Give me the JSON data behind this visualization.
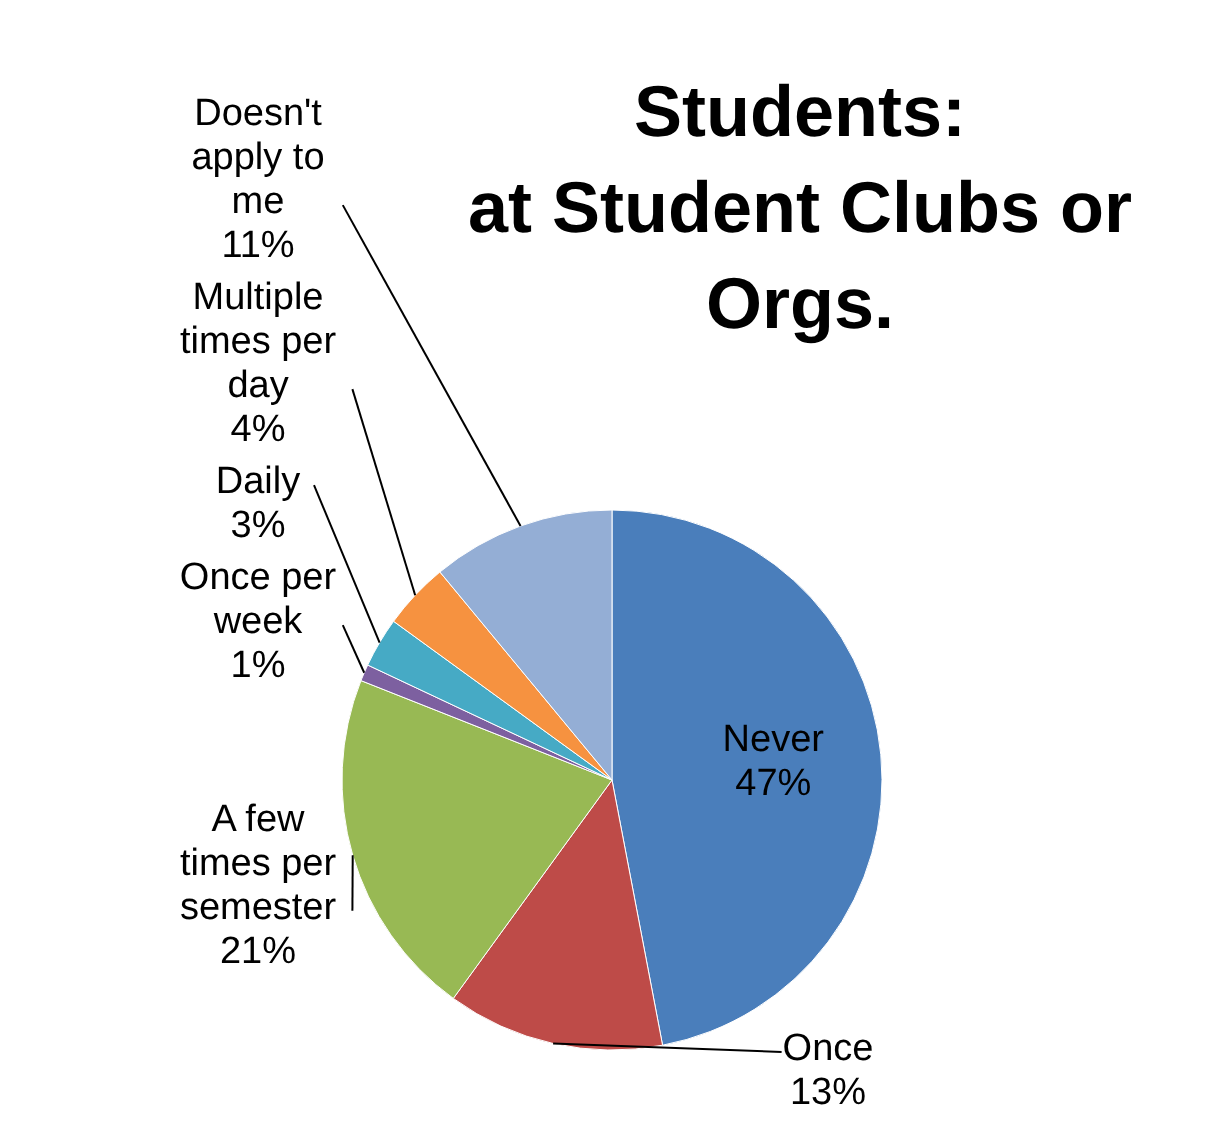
{
  "chart_data": {
    "type": "pie",
    "title": "Students:\nat Student Clubs or Orgs.",
    "categories": [
      "Never",
      "Once",
      "A few times per semester",
      "Once per week",
      "Daily",
      "Multiple times per day",
      "Doesn't apply to me"
    ],
    "values": [
      47,
      13,
      21,
      1,
      3,
      4,
      11
    ],
    "value_labels": [
      "47%",
      "13%",
      "21%",
      "1%",
      "3%",
      "4%",
      "11%"
    ],
    "colors": [
      "#4a7ebb",
      "#be4b48",
      "#98b954",
      "#7d60a0",
      "#46aac5",
      "#f69240",
      "#94aed5"
    ]
  }
}
